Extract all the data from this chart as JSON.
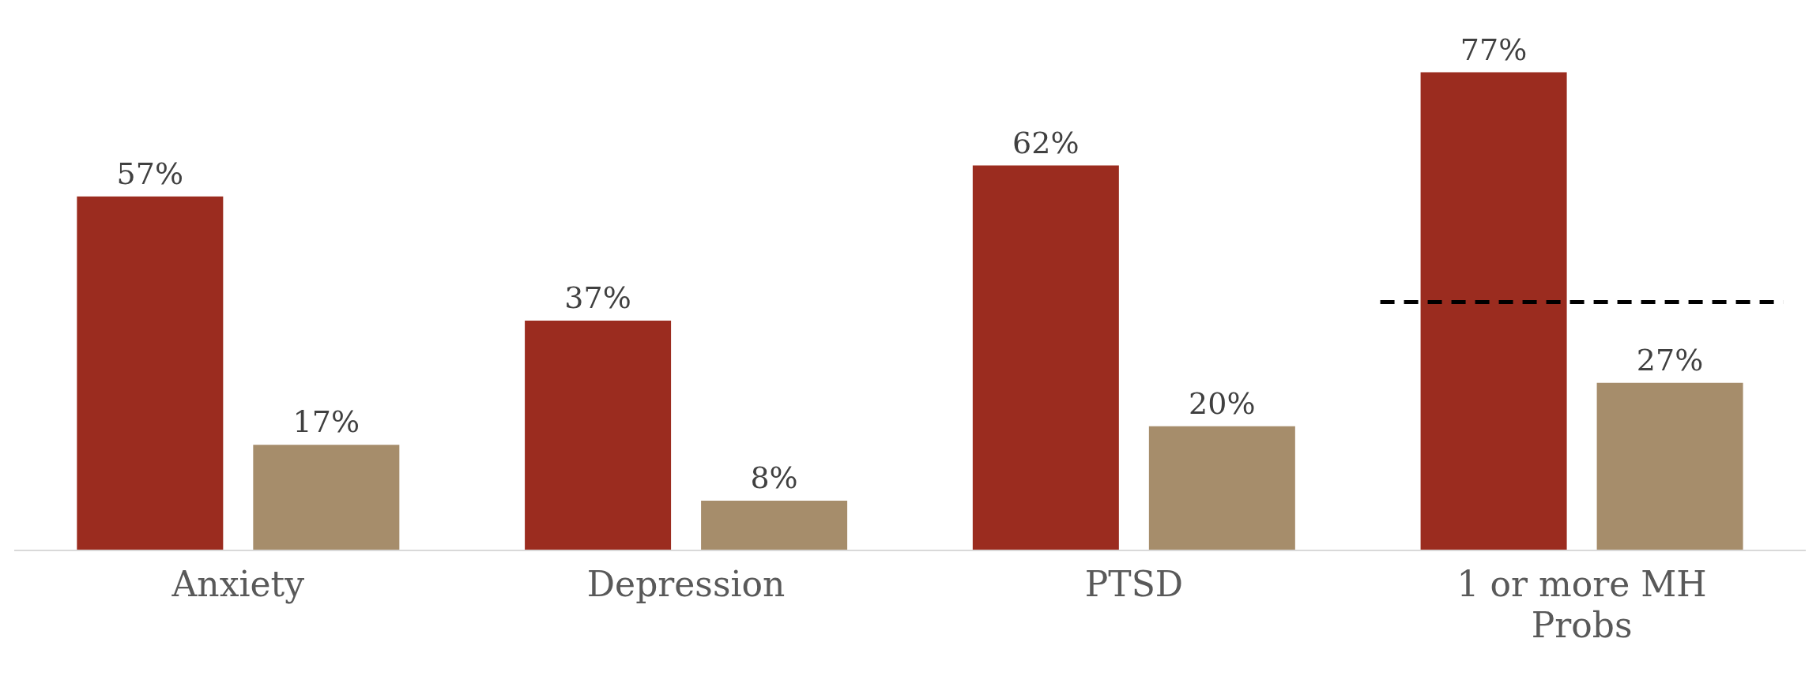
{
  "chart_data": {
    "type": "bar",
    "categories": [
      "Anxiety",
      "Depression",
      "PTSD",
      "1 or more MH Probs"
    ],
    "series": [
      {
        "color": "#9b2c1f",
        "values": [
          57,
          37,
          62,
          77
        ],
        "value_labels": [
          "57%",
          "37%",
          "62%",
          "77%"
        ]
      },
      {
        "color": "#a68d6b",
        "values": [
          17,
          8,
          20,
          27
        ],
        "value_labels": [
          "17%",
          "8%",
          "20%",
          "27%"
        ]
      }
    ],
    "ref_lines": [
      {
        "axis": "y",
        "value": 40,
        "color": "#000000",
        "line_style": "dashed"
      }
    ],
    "grid": false,
    "legend": false
  }
}
